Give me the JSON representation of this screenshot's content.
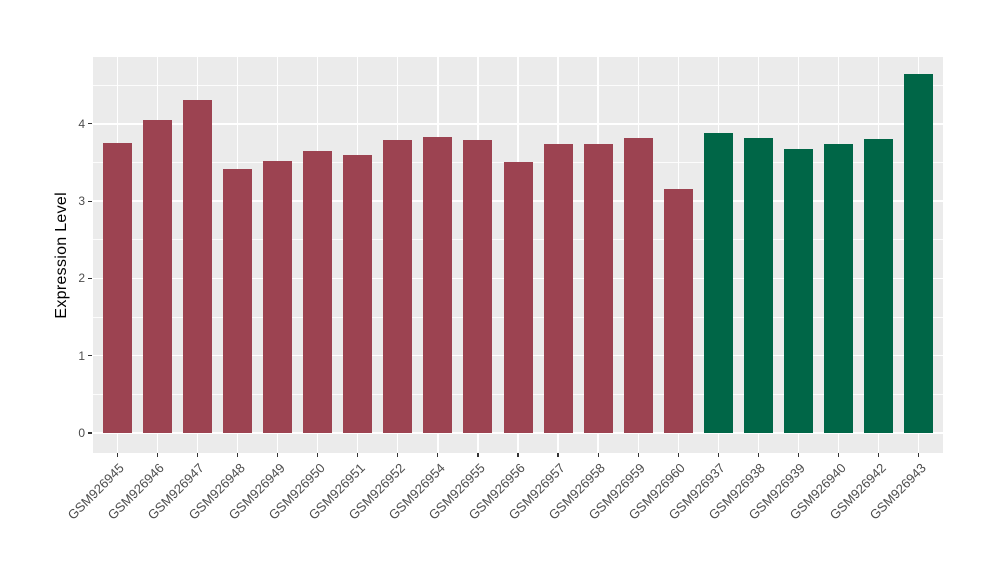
{
  "chart_data": {
    "type": "bar",
    "title": "",
    "xlabel": "",
    "ylabel": "Expression Level",
    "categories": [
      "GSM926945",
      "GSM926946",
      "GSM926947",
      "GSM926948",
      "GSM926949",
      "GSM926950",
      "GSM926951",
      "GSM926952",
      "GSM926954",
      "GSM926955",
      "GSM926956",
      "GSM926957",
      "GSM926958",
      "GSM926959",
      "GSM926960",
      "GSM926937",
      "GSM926938",
      "GSM926939",
      "GSM926940",
      "GSM926942",
      "GSM926943"
    ],
    "values": [
      3.75,
      4.05,
      4.31,
      3.42,
      3.52,
      3.65,
      3.6,
      3.79,
      3.83,
      3.79,
      3.51,
      3.74,
      3.74,
      3.82,
      3.16,
      3.88,
      3.82,
      3.67,
      3.74,
      3.8,
      4.64
    ],
    "bar_groups": [
      "A",
      "A",
      "A",
      "A",
      "A",
      "A",
      "A",
      "A",
      "A",
      "A",
      "A",
      "A",
      "A",
      "A",
      "A",
      "B",
      "B",
      "B",
      "B",
      "B",
      "B"
    ],
    "group_colors": {
      "A": "#9C4351",
      "B": "#006647"
    },
    "yticks": [
      0,
      1,
      2,
      3,
      4
    ],
    "yticks_minor": [
      0.5,
      1.5,
      2.5,
      3.5,
      4.5
    ],
    "ylim": [
      -0.26,
      4.86
    ],
    "grid": "major-and-minor-white-on-gray",
    "legend_position": "none",
    "panel_background": "#EBEBEB",
    "gridline_color": "#FFFFFF",
    "axis_text_color": "#4D4D4D",
    "tick_mark_color": "#333333"
  }
}
